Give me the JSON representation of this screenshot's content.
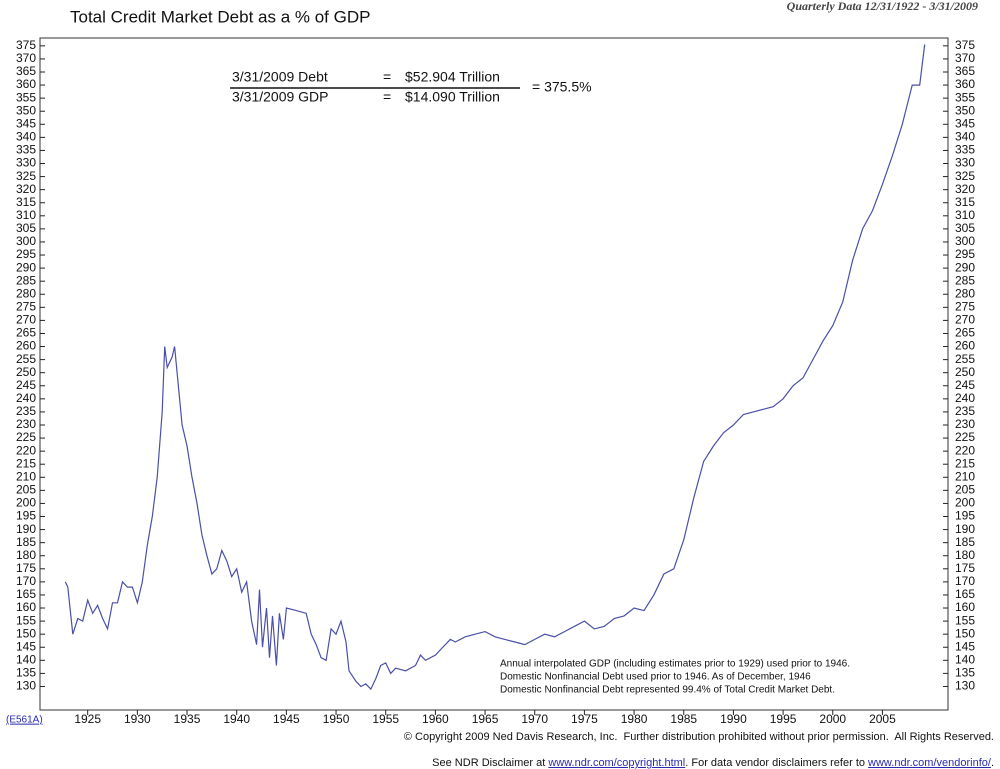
{
  "chart_data": {
    "type": "line",
    "title": "Total Credit Market Debt as a % of GDP",
    "subtitle": "Quarterly Data 12/31/1922 - 3/31/2009",
    "formula": {
      "debt_label": "3/31/2009  Debt",
      "eq": "=",
      "debt_value": "$52.904 Trillion",
      "gdp_label": "3/31/2009  GDP",
      "gdp_value": "$14.090 Trillion",
      "result": "=  375.5%"
    },
    "notes": [
      "Annual interpolated GDP (including estimates prior to 1929) used prior to 1946.",
      "Domestic Nonfinancial Debt used prior to 1946. As of December, 1946",
      "Domestic Nonfinancial Debt represented 99.4% of Total Credit Market Debt."
    ],
    "code": "(E561A)",
    "footer": {
      "line1": "© Copyright 2009 Ned Davis Research, Inc.  Further distribution prohibited without prior permission.  All Rights Reserved.",
      "line2": [
        "See NDR Disclaimer at ",
        "www.ndr.com/copyright.html",
        ". For data vendor disclaimers refer to ",
        "www.ndr.com/vendorinfo/",
        "."
      ]
    },
    "color": "#4a4fa8",
    "x": [
      1922.75,
      1923,
      1923.5,
      1924,
      1924.5,
      1925,
      1925.5,
      1926,
      1926.5,
      1927,
      1927.5,
      1928,
      1928.5,
      1929,
      1929.5,
      1930,
      1930.5,
      1931,
      1931.5,
      1932,
      1932.5,
      1932.75,
      1933,
      1933.5,
      1933.75,
      1934,
      1934.5,
      1935,
      1935.5,
      1936,
      1936.5,
      1937,
      1937.5,
      1938,
      1938.5,
      1939,
      1939.5,
      1940,
      1940.5,
      1941,
      1941.5,
      1942,
      1942.3,
      1942.6,
      1943,
      1943.3,
      1943.6,
      1944,
      1944.3,
      1944.7,
      1945,
      1946,
      1947,
      1947.5,
      1948,
      1948.5,
      1949,
      1949.5,
      1950,
      1950.5,
      1951,
      1951.3,
      1952,
      1952.5,
      1953,
      1953.5,
      1954,
      1954.5,
      1955,
      1955.5,
      1956,
      1957,
      1958,
      1958.5,
      1959,
      1960,
      1961,
      1961.5,
      1962,
      1963,
      1964,
      1965,
      1966,
      1967,
      1968,
      1969,
      1970,
      1971,
      1972,
      1973,
      1974,
      1975,
      1976,
      1977,
      1978,
      1979,
      1980,
      1981,
      1982,
      1983,
      1984,
      1985,
      1986,
      1987,
      1988,
      1989,
      1990,
      1991,
      1992,
      1993,
      1994,
      1995,
      1996,
      1997,
      1998,
      1999,
      2000,
      2001,
      2002,
      2003,
      2004,
      2005,
      2006,
      2007,
      2008,
      2008.75,
      2009.25
    ],
    "values": [
      170,
      168,
      150,
      156,
      155,
      163,
      158,
      161,
      156,
      152,
      162,
      162,
      170,
      168,
      168,
      162,
      170,
      184,
      195,
      210,
      235,
      260,
      252,
      256,
      260,
      250,
      230,
      222,
      210,
      200,
      188,
      180,
      173,
      175,
      182,
      178,
      172,
      175,
      166,
      170,
      155,
      146,
      167,
      145,
      160,
      141,
      157,
      138,
      158,
      148,
      160,
      159,
      158,
      150,
      146,
      141,
      140,
      152,
      150,
      155,
      147,
      136,
      132,
      130,
      131,
      129,
      133,
      138,
      139,
      135,
      137,
      136,
      138,
      142,
      140,
      142,
      146,
      148,
      147,
      149,
      150,
      151,
      149,
      148,
      147,
      146,
      148,
      150,
      149,
      151,
      153,
      155,
      152,
      153,
      156,
      157,
      160,
      159,
      165,
      173,
      175,
      186,
      202,
      216,
      222,
      227,
      230,
      234,
      235,
      236,
      237,
      240,
      245,
      248,
      255,
      262,
      268,
      277,
      293,
      305,
      312,
      322,
      333,
      345,
      360,
      360,
      375.5
    ],
    "xlim": [
      1920.2,
      2011.6
    ],
    "xticks": [
      1925,
      1930,
      1935,
      1940,
      1945,
      1950,
      1955,
      1960,
      1965,
      1970,
      1975,
      1980,
      1985,
      1990,
      1995,
      2000,
      2005
    ],
    "ylim": [
      121,
      378
    ],
    "yticks": [
      130,
      135,
      140,
      145,
      150,
      155,
      160,
      165,
      170,
      175,
      180,
      185,
      190,
      195,
      200,
      205,
      210,
      215,
      220,
      225,
      230,
      235,
      240,
      245,
      250,
      255,
      260,
      265,
      270,
      275,
      280,
      285,
      290,
      295,
      300,
      305,
      310,
      315,
      320,
      325,
      330,
      335,
      340,
      345,
      350,
      355,
      360,
      365,
      370,
      375
    ]
  }
}
